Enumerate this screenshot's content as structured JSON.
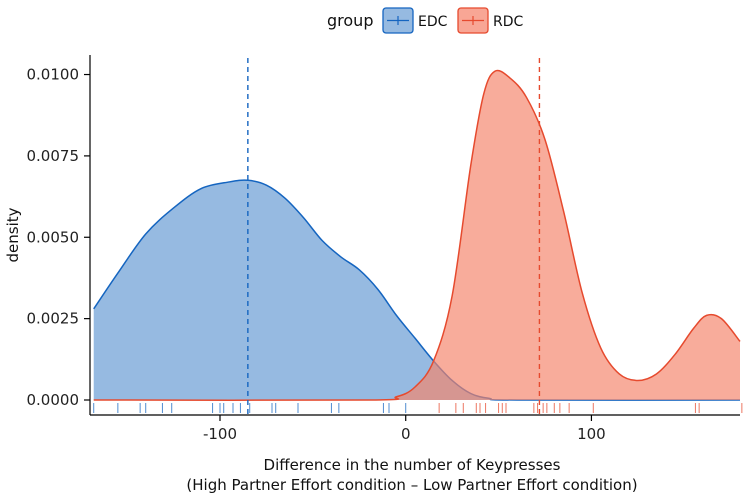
{
  "chart_data": {
    "type": "area",
    "xlabel_line1": "Difference in the number of Keypresses",
    "xlabel_line2": "(High Partner Effort condition – Low Partner Effort condition)",
    "ylabel": "density",
    "xlim": [
      -170,
      180
    ],
    "ylim": [
      0,
      0.0106
    ],
    "x_ticks": [
      -100,
      0,
      100
    ],
    "x_tick_labels": [
      "-100",
      "0",
      "100"
    ],
    "y_ticks": [
      0,
      0.0025,
      0.005,
      0.0075,
      0.01
    ],
    "y_tick_labels": [
      "0.0000",
      "0.0025",
      "0.0050",
      "0.0075",
      "0.0100"
    ],
    "grid": false,
    "legend": {
      "title": "group",
      "position": "top",
      "entries": [
        "EDC",
        "RDC"
      ]
    },
    "series": [
      {
        "name": "EDC",
        "color": "#1565C0",
        "fill": "#6E9FD6",
        "mean": -85,
        "points": [
          [
            -168,
            0.0028
          ],
          [
            -155,
            0.0039
          ],
          [
            -140,
            0.0051
          ],
          [
            -125,
            0.0059
          ],
          [
            -110,
            0.0065
          ],
          [
            -95,
            0.0067
          ],
          [
            -85,
            0.00675
          ],
          [
            -75,
            0.0066
          ],
          [
            -65,
            0.0062
          ],
          [
            -55,
            0.0056
          ],
          [
            -45,
            0.0049
          ],
          [
            -35,
            0.0044
          ],
          [
            -25,
            0.004
          ],
          [
            -15,
            0.0034
          ],
          [
            -5,
            0.0026
          ],
          [
            5,
            0.0019
          ],
          [
            15,
            0.0012
          ],
          [
            25,
            0.0006
          ],
          [
            35,
            0.0002
          ],
          [
            45,
            5e-05
          ],
          [
            60,
            0.0
          ],
          [
            180,
            0.0
          ]
        ],
        "rug": [
          -168,
          -155,
          -143,
          -140,
          -131,
          -126,
          -104,
          -100,
          -98,
          -93,
          -89,
          -84,
          -72,
          -70,
          -58,
          -40,
          -36,
          -12,
          -9,
          0
        ]
      },
      {
        "name": "RDC",
        "color": "#E64A2E",
        "fill": "#F5846C",
        "mean": 72,
        "points": [
          [
            -168,
            0.0
          ],
          [
            -20,
            0.0
          ],
          [
            -5,
            0.0001
          ],
          [
            5,
            0.0004
          ],
          [
            15,
            0.0012
          ],
          [
            25,
            0.0032
          ],
          [
            35,
            0.0072
          ],
          [
            42,
            0.0094
          ],
          [
            48,
            0.0101
          ],
          [
            56,
            0.0099
          ],
          [
            65,
            0.0093
          ],
          [
            75,
            0.008
          ],
          [
            85,
            0.0058
          ],
          [
            95,
            0.0033
          ],
          [
            105,
            0.0016
          ],
          [
            115,
            0.0008
          ],
          [
            125,
            0.0006
          ],
          [
            135,
            0.0008
          ],
          [
            145,
            0.0014
          ],
          [
            155,
            0.0022
          ],
          [
            162,
            0.0026
          ],
          [
            170,
            0.0025
          ],
          [
            180,
            0.0018
          ]
        ],
        "rug": [
          18,
          27,
          31,
          38,
          40,
          43,
          50,
          52,
          54,
          69,
          71,
          74,
          76,
          80,
          83,
          88,
          101,
          156,
          158,
          181
        ]
      }
    ]
  }
}
